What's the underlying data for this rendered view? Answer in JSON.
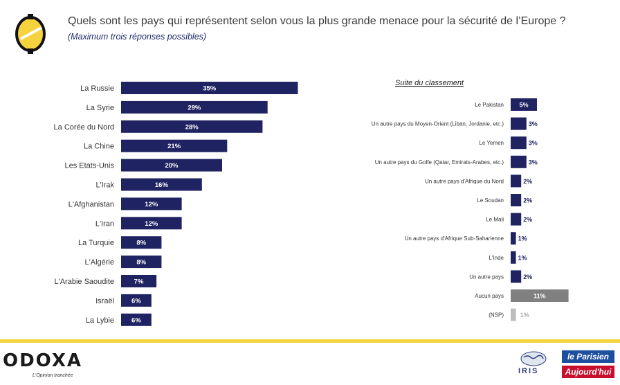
{
  "header": {
    "title": "Quels sont les pays qui représentent selon vous la plus grande menace pour la sécurité de l’Europe ?",
    "subtitle": "(Maximum trois réponses possibles)"
  },
  "right_panel": {
    "heading": "Suite du classement"
  },
  "footer": {
    "brand": "ODOXA",
    "tagline": "L'Opinion tranchée",
    "partner1": "IRIS",
    "partner2_line1": "le Parisien",
    "partner2_line2": "Aujourd'hui"
  },
  "colors": {
    "bar": "#1f2361",
    "none_bar": "#808080",
    "nsp_bar": "#bdbdbd",
    "accent": "#f5d33f"
  },
  "chart_data": [
    {
      "type": "bar",
      "orientation": "horizontal",
      "categories": [
        "La Russie",
        "La Syrie",
        "La Corée du Nord",
        "La Chine",
        "Les Etats-Unis",
        "L'Irak",
        "L'Afghanistan",
        "L'Iran",
        "La Turquie",
        "L'Algérie",
        "L'Arabie Saoudite",
        "Israël",
        "La Lybie"
      ],
      "values": [
        35,
        29,
        28,
        21,
        20,
        16,
        12,
        12,
        8,
        8,
        7,
        6,
        6
      ],
      "labels": [
        "35%",
        "29%",
        "28%",
        "21%",
        "20%",
        "16%",
        "12%",
        "12%",
        "8%",
        "8%",
        "7%",
        "6%",
        "6%"
      ]
    },
    {
      "type": "bar",
      "orientation": "horizontal",
      "categories": [
        "Le Pakistan",
        "Un autre pays du Moyen-Orient (Liban, Jordanie, etc.)",
        "Le Yemen",
        "Un autre pays du Golfe (Qatar, Emirats-Arabes, etc.)",
        "Un autre pays d'Afrique du Nord",
        "Le Soudan",
        "Le Mali",
        "Un autre pays d'Afrique Sub-Saharienne",
        "L'Inde",
        "Un autre pays",
        "Aucun pays",
        "(NSP)"
      ],
      "values": [
        5,
        3,
        3,
        3,
        2,
        2,
        2,
        1,
        1,
        2,
        11,
        1
      ],
      "labels": [
        "5%",
        "3%",
        "3%",
        "3%",
        "2%",
        "2%",
        "2%",
        "1%",
        "1%",
        "2%",
        "11%",
        "1%"
      ]
    }
  ]
}
